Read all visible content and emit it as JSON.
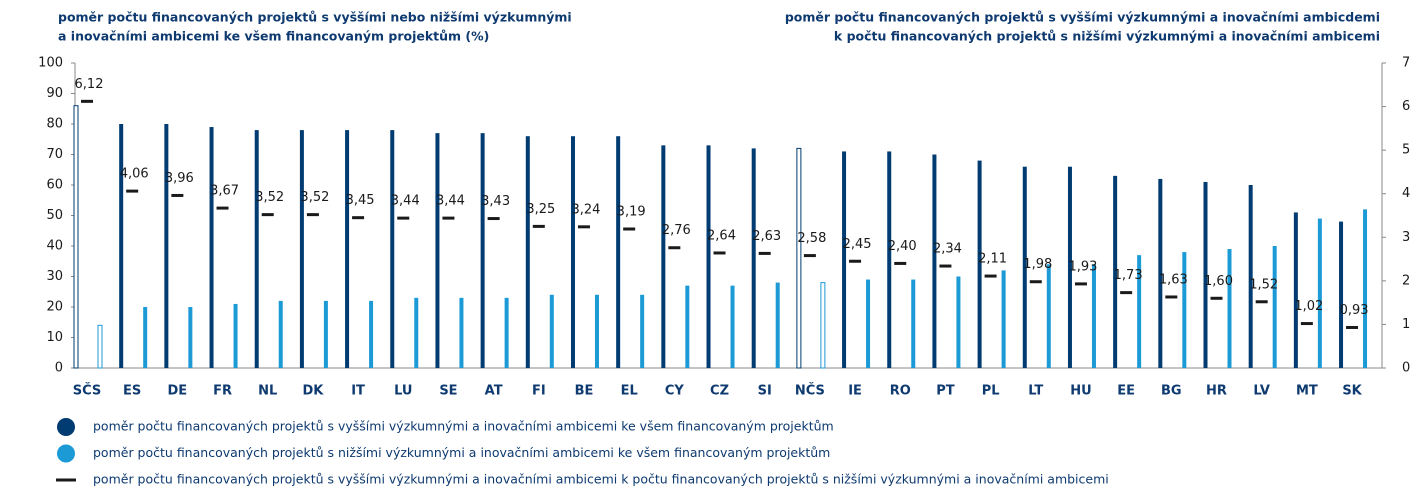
{
  "chart_data": {
    "type": "bar",
    "title_left": [
      "poměr počtu financovaných projektů s vyššími nebo nižšími výzkumnými",
      "a inovačními ambicemi ke všem financovaným projektům (%)"
    ],
    "title_right": [
      "poměr počtu financovaných projektů s vyššími výzkumnými a  inovačními ambicdemi",
      "k počtu financovaných projektů s nižšími výzkumnými a inovačními ambicemi"
    ],
    "categories": [
      "SČS",
      "ES",
      "DE",
      "FR",
      "NL",
      "DK",
      "IT",
      "LU",
      "SE",
      "AT",
      "FI",
      "BE",
      "EL",
      "CY",
      "CZ",
      "SI",
      "NČS",
      "IE",
      "RO",
      "PT",
      "PL",
      "LT",
      "HU",
      "EE",
      "BG",
      "HR",
      "LV",
      "MT",
      "SK"
    ],
    "hollow": [
      0,
      16
    ],
    "series": [
      {
        "name": "poměr počtu financovaných projektů s vyššími výzkumnými a inovačními ambicemi ke všem financovaným projektům",
        "color": "#003b71",
        "values": [
          86,
          80,
          80,
          79,
          78,
          78,
          78,
          78,
          77,
          77,
          76,
          76,
          76,
          73,
          73,
          72,
          72,
          71,
          71,
          70,
          68,
          66,
          66,
          63,
          62,
          61,
          60,
          51,
          48
        ]
      },
      {
        "name": "poměr počtu financovaných projektů s nižšími výzkumnými a inovačními ambicemi ke všem financovaným projektům",
        "color": "#1b9ad6",
        "values": [
          14,
          20,
          20,
          21,
          22,
          22,
          22,
          23,
          23,
          23,
          24,
          24,
          24,
          27,
          27,
          28,
          28,
          29,
          29,
          30,
          32,
          34,
          34,
          37,
          38,
          39,
          40,
          49,
          52
        ]
      },
      {
        "name": "poměr počtu financovaných projektů s vyššími výzkumnými a inovačními ambicemi k počtu financovaných projektů s nižšími výzkumnými a inovačními ambicemi",
        "color": "#1a1a1a",
        "axis": "y2",
        "values": [
          6.12,
          4.06,
          3.96,
          3.67,
          3.52,
          3.52,
          3.45,
          3.44,
          3.44,
          3.43,
          3.25,
          3.24,
          3.19,
          2.76,
          2.64,
          2.63,
          2.58,
          2.45,
          2.4,
          2.34,
          2.11,
          1.98,
          1.93,
          1.73,
          1.63,
          1.6,
          1.52,
          1.02,
          0.93
        ],
        "value_labels": [
          "6,12",
          "4,06",
          "3,96",
          "3,67",
          "3,52",
          "3,52",
          "3,45",
          "3,44",
          "3,44",
          "3,43",
          "3,25",
          "3,24",
          "3,19",
          "2,76",
          "2,64",
          "2,63",
          "2,58",
          "2,45",
          "2,40",
          "2,34",
          "2,11",
          "1,98",
          "1,93",
          "1,73",
          "1,63",
          "1,60",
          "1,52",
          "1,02",
          "0,93"
        ]
      }
    ],
    "ylim": [
      0,
      100
    ],
    "yticks": [
      0,
      10,
      20,
      30,
      40,
      50,
      60,
      70,
      80,
      90,
      100
    ],
    "y2lim": [
      0,
      7
    ],
    "y2ticks": [
      0,
      1,
      2,
      3,
      4,
      5,
      6,
      7
    ]
  }
}
